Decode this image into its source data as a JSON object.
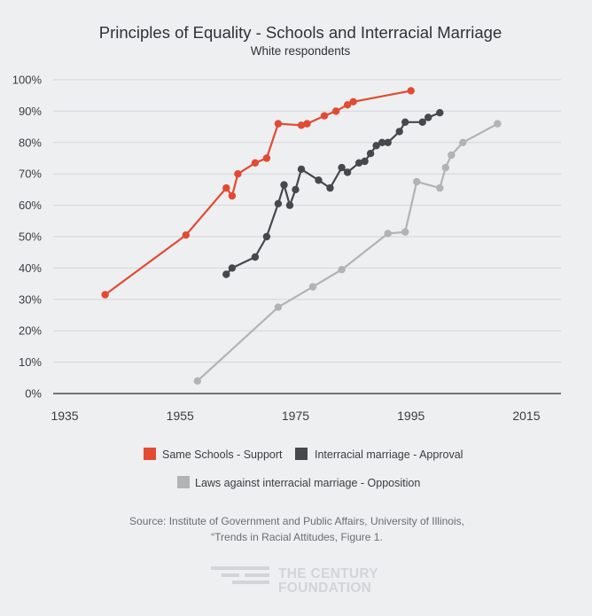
{
  "chart_data": {
    "type": "line",
    "title": "Principles of Equality - Schools and Interracial Marriage",
    "subtitle": "White respondents",
    "xlabel": "",
    "ylabel": "",
    "xlim": [
      1933,
      2021
    ],
    "ylim": [
      0,
      100
    ],
    "x_ticks": [
      1935,
      1955,
      1975,
      1995,
      2015
    ],
    "x_tick_labels": [
      "1935",
      "1955",
      "1975",
      "1995",
      "2015"
    ],
    "y_ticks": [
      0,
      10,
      20,
      30,
      40,
      50,
      60,
      70,
      80,
      90,
      100
    ],
    "y_tick_labels": [
      "0%",
      "10%",
      "20%",
      "30%",
      "40%",
      "50%",
      "60%",
      "70%",
      "80%",
      "90%",
      "100%"
    ],
    "grid": true,
    "series": [
      {
        "name": "Same Schools - Support",
        "color": "#e24a33",
        "points": [
          [
            1942,
            31.5
          ],
          [
            1956,
            50.5
          ],
          [
            1963,
            65.5
          ],
          [
            1964,
            63
          ],
          [
            1965,
            70
          ],
          [
            1968,
            73.5
          ],
          [
            1970,
            75
          ],
          [
            1972,
            86
          ],
          [
            1976,
            85.5
          ],
          [
            1977,
            86
          ],
          [
            1980,
            88.5
          ],
          [
            1982,
            90
          ],
          [
            1984,
            92
          ],
          [
            1985,
            93
          ],
          [
            1995,
            96.5
          ]
        ]
      },
      {
        "name": "Interracial marriage - Approval",
        "color": "#45484c",
        "points": [
          [
            1963,
            38
          ],
          [
            1964,
            40
          ],
          [
            1968,
            43.5
          ],
          [
            1970,
            50
          ],
          [
            1972,
            60.5
          ],
          [
            1973,
            66.5
          ],
          [
            1974,
            60
          ],
          [
            1975,
            65
          ],
          [
            1976,
            71.5
          ],
          [
            1979,
            68
          ],
          [
            1981,
            65.5
          ],
          [
            1983,
            72
          ],
          [
            1984,
            70.5
          ],
          [
            1986,
            73.5
          ],
          [
            1987,
            74
          ],
          [
            1988,
            76.5
          ],
          [
            1989,
            79
          ],
          [
            1990,
            80
          ],
          [
            1991,
            80
          ],
          [
            1993,
            83.5
          ],
          [
            1994,
            86.5
          ],
          [
            1997,
            86.5
          ],
          [
            1998,
            88
          ],
          [
            2000,
            89.5
          ]
        ]
      },
      {
        "name": "Laws against interracial marriage - Opposition",
        "color": "#b1b3b5",
        "points": [
          [
            1958,
            4
          ],
          [
            1972,
            27.5
          ],
          [
            1978,
            34
          ],
          [
            1983,
            39.5
          ],
          [
            1991,
            51
          ],
          [
            1994,
            51.5
          ],
          [
            1996,
            67.5
          ],
          [
            2000,
            65.5
          ],
          [
            2001,
            72
          ],
          [
            2002,
            76
          ],
          [
            2004,
            80
          ],
          [
            2010,
            86
          ]
        ]
      }
    ],
    "legend": [
      {
        "label": "Same Schools - Support",
        "color": "#e24a33"
      },
      {
        "label": "Interracial marriage - Approval",
        "color": "#45484c"
      },
      {
        "label": "Laws against interracial marriage - Opposition",
        "color": "#b1b3b5"
      }
    ],
    "legend_position": "bottom-center",
    "source_lines": [
      "Source: Institute of Government and Public Affairs, University of Illinois,",
      "“Trends in Racial Attitudes, Figure 1."
    ]
  },
  "logo": {
    "line1": "THE CENTURY",
    "line2": "FOUNDATION"
  }
}
